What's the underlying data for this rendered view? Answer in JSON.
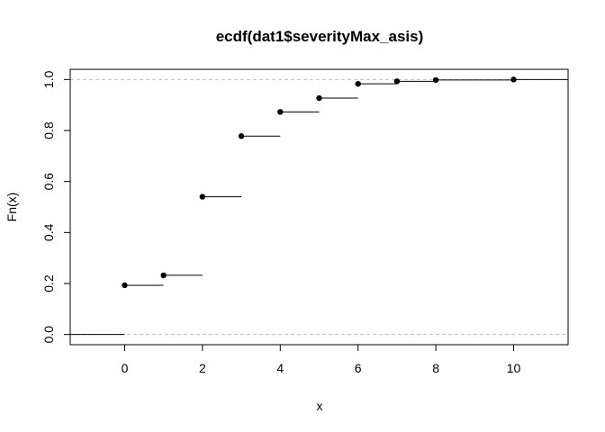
{
  "chart_data": {
    "type": "line",
    "style": "step-ecdf",
    "title": "ecdf(dat1$severityMax_asis)",
    "xlabel": "x",
    "ylabel": "Fn(x)",
    "xlim": [
      -1.4,
      11.4
    ],
    "ylim": [
      -0.04,
      1.04
    ],
    "xticks": [
      "0",
      "2",
      "4",
      "6",
      "8",
      "10"
    ],
    "yticks": [
      "0.0",
      "0.2",
      "0.4",
      "0.6",
      "0.8",
      "1.0"
    ],
    "x": [
      0,
      1,
      2,
      3,
      4,
      5,
      6,
      7,
      8,
      10
    ],
    "y": [
      0.193,
      0.232,
      0.54,
      0.778,
      0.873,
      0.927,
      0.983,
      0.993,
      0.998,
      1.0
    ],
    "reference_lines": [
      0,
      1
    ],
    "grid": false,
    "colors": {
      "points": "#000000",
      "steps": "#000000",
      "reference": "#bebebe"
    }
  }
}
